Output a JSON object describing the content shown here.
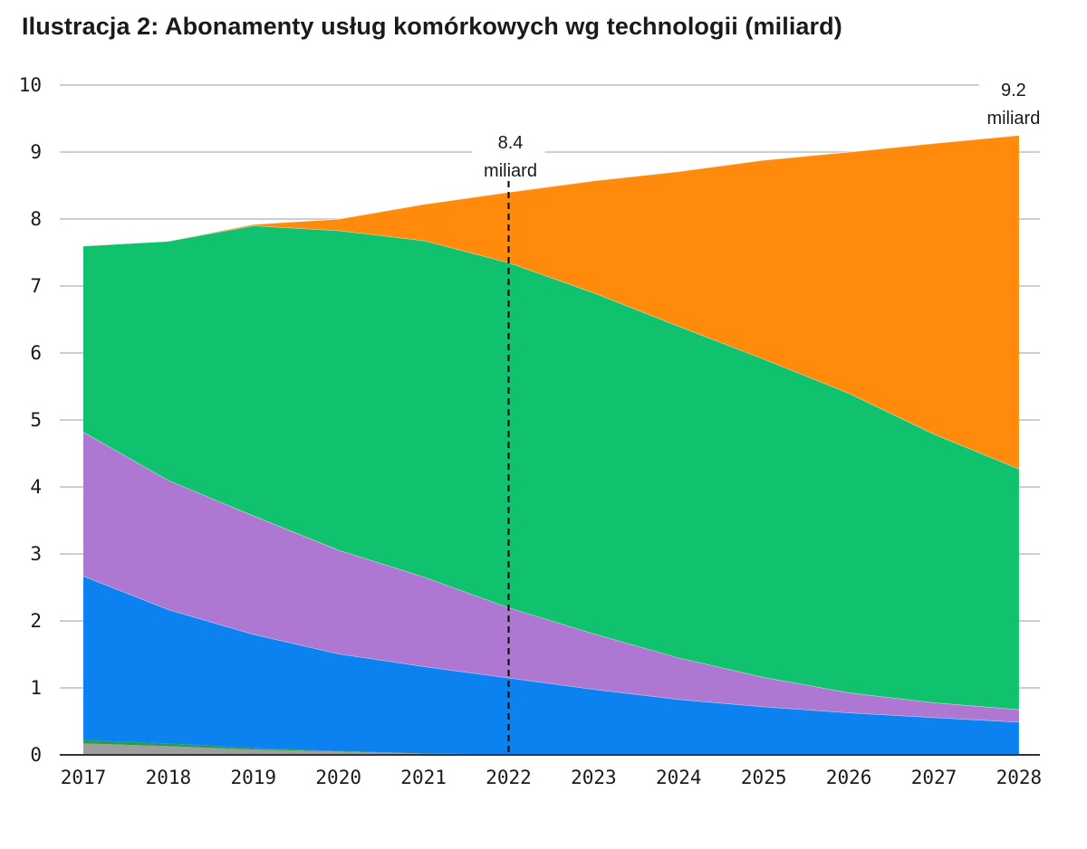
{
  "title": "Ilustracja 2: Abonamenty usług komórkowych wg technologii (miliard)",
  "colors": {
    "grid": "#bdbdbd",
    "axis": "#333333",
    "background": "#ffffff",
    "annotation_line": "#000000"
  },
  "chart_data": {
    "type": "area",
    "stacked": true,
    "title": "Ilustracja 2: Abonamenty usług komórkowych wg technologii (miliard)",
    "xlabel": "",
    "ylabel": "",
    "x": [
      "2017",
      "2018",
      "2019",
      "2020",
      "2021",
      "2022",
      "2023",
      "2024",
      "2025",
      "2026",
      "2027",
      "2028"
    ],
    "ylim": [
      0,
      10
    ],
    "yticks": [
      "0",
      "1",
      "2",
      "3",
      "4",
      "5",
      "6",
      "7",
      "8",
      "9",
      "10"
    ],
    "grid": true,
    "legend": "none",
    "series": [
      {
        "name": "gray",
        "color": "#9e9e9e",
        "values": [
          0.17,
          0.13,
          0.08,
          0.05,
          0.02,
          0.01,
          0.0,
          0.0,
          0.0,
          0.0,
          0.0,
          0.0
        ]
      },
      {
        "name": "dark green",
        "color": "#2a9d4a",
        "values": [
          0.05,
          0.04,
          0.02,
          0.01,
          0.0,
          0.0,
          0.0,
          0.0,
          0.0,
          0.0,
          0.0,
          0.0
        ]
      },
      {
        "name": "blue",
        "color": "#0c82f0",
        "values": [
          2.45,
          2.0,
          1.7,
          1.45,
          1.3,
          1.14,
          0.98,
          0.83,
          0.72,
          0.63,
          0.56,
          0.49
        ]
      },
      {
        "name": "purple",
        "color": "#ae78d2",
        "values": [
          2.15,
          1.93,
          1.77,
          1.55,
          1.34,
          1.05,
          0.83,
          0.62,
          0.44,
          0.3,
          0.22,
          0.19
        ]
      },
      {
        "name": "green",
        "color": "#10c26e",
        "values": [
          2.78,
          3.57,
          4.33,
          4.77,
          5.02,
          5.15,
          5.09,
          4.95,
          4.75,
          4.47,
          4.01,
          3.59
        ]
      },
      {
        "name": "orange",
        "color": "#ff8a0c",
        "values": [
          0.0,
          0.0,
          0.02,
          0.17,
          0.54,
          1.05,
          1.67,
          2.31,
          2.97,
          3.6,
          4.34,
          4.98
        ]
      }
    ],
    "annotations": [
      {
        "x": "2022",
        "value": 8.4,
        "label": "8.4",
        "sublabel": "miliard",
        "dashed_line": true
      },
      {
        "x": "2028",
        "value": 9.2,
        "label": "9.2",
        "sublabel": "miliard",
        "dashed_line": false
      }
    ]
  }
}
